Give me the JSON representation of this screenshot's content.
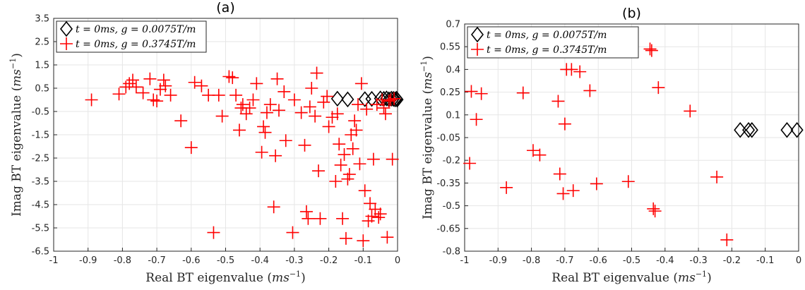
{
  "chart_data": [
    {
      "type": "scatter",
      "title": "(a)",
      "xlabel": "Real BT eigenvalue",
      "xlabel_unit": "ms",
      "xlabel_unit_exp": "−1",
      "ylabel": "Imag BT eigenvalue",
      "ylabel_unit": "ms",
      "ylabel_unit_exp": "−1",
      "xlim": [
        -1,
        0
      ],
      "ylim": [
        -6.5,
        3.5
      ],
      "xticks": [
        -1,
        -0.9,
        -0.8,
        -0.7,
        -0.6,
        -0.5,
        -0.4,
        -0.3,
        -0.2,
        -0.1,
        0
      ],
      "xticklabels": [
        "-1",
        "-0.9",
        "-0.8",
        "-0.7",
        "-0.6",
        "-0.5",
        "-0.4",
        "-0.3",
        "-0.2",
        "-0.1",
        "0"
      ],
      "yticks": [
        3.5,
        2.5,
        1.5,
        0.5,
        -0.5,
        -1.5,
        -2.5,
        -3.5,
        -4.5,
        -5.5,
        -6.5
      ],
      "yticklabels": [
        "3.5",
        "2.5",
        "1.5",
        "0.5",
        "-0.5",
        "-1.5",
        "-2.5",
        "-3.5",
        "-4.5",
        "-5.5",
        "-6.5"
      ],
      "grid": true,
      "legend_position": "top-left",
      "series": [
        {
          "name": "t = 0ms,  g = 0.0075T/m",
          "marker": "diamond",
          "color": "#000000",
          "points": [
            [
              -0.175,
              0.05
            ],
            [
              -0.145,
              0.02
            ],
            [
              -0.095,
              0.03
            ],
            [
              -0.075,
              0.04
            ],
            [
              -0.05,
              0.06
            ],
            [
              -0.04,
              0.04
            ],
            [
              -0.032,
              0.06
            ],
            [
              -0.025,
              0.02
            ],
            [
              -0.018,
              0.05
            ],
            [
              -0.012,
              0.04
            ],
            [
              -0.007,
              0.02
            ],
            [
              -0.003,
              0.05
            ],
            [
              -0.001,
              0.01
            ]
          ]
        },
        {
          "name": "t = 0ms,  g = 0.3745T/m",
          "marker": "plus",
          "color": "#ff0000",
          "points": [
            [
              -0.89,
              0.0
            ],
            [
              -0.81,
              0.25
            ],
            [
              -0.79,
              0.55
            ],
            [
              -0.78,
              0.7
            ],
            [
              -0.77,
              0.85
            ],
            [
              -0.76,
              0.55
            ],
            [
              -0.74,
              0.3
            ],
            [
              -0.72,
              0.9
            ],
            [
              -0.71,
              0.0
            ],
            [
              -0.7,
              -0.05
            ],
            [
              -0.69,
              0.45
            ],
            [
              -0.68,
              0.85
            ],
            [
              -0.675,
              0.6
            ],
            [
              -0.66,
              0.2
            ],
            [
              -0.63,
              -0.9
            ],
            [
              -0.6,
              -2.05
            ],
            [
              -0.59,
              0.75
            ],
            [
              -0.57,
              0.6
            ],
            [
              -0.55,
              0.2
            ],
            [
              -0.535,
              -5.7
            ],
            [
              -0.52,
              0.2
            ],
            [
              -0.51,
              -0.7
            ],
            [
              -0.49,
              1.0
            ],
            [
              -0.48,
              0.95
            ],
            [
              -0.47,
              0.2
            ],
            [
              -0.46,
              -1.3
            ],
            [
              -0.455,
              -0.35
            ],
            [
              -0.45,
              -0.2
            ],
            [
              -0.44,
              -0.6
            ],
            [
              -0.43,
              -0.35
            ],
            [
              -0.42,
              0.0
            ],
            [
              -0.41,
              0.7
            ],
            [
              -0.395,
              -2.25
            ],
            [
              -0.39,
              -1.15
            ],
            [
              -0.385,
              -1.4
            ],
            [
              -0.38,
              -0.55
            ],
            [
              -0.37,
              -0.2
            ],
            [
              -0.36,
              -4.6
            ],
            [
              -0.355,
              -2.4
            ],
            [
              -0.35,
              0.9
            ],
            [
              -0.345,
              -0.45
            ],
            [
              -0.33,
              0.35
            ],
            [
              -0.325,
              -1.75
            ],
            [
              -0.305,
              -5.7
            ],
            [
              -0.3,
              0.0
            ],
            [
              -0.28,
              -0.55
            ],
            [
              -0.27,
              -1.95
            ],
            [
              -0.265,
              -4.8
            ],
            [
              -0.26,
              -5.1
            ],
            [
              -0.255,
              -0.3
            ],
            [
              -0.25,
              0.5
            ],
            [
              -0.24,
              -0.7
            ],
            [
              -0.235,
              1.15
            ],
            [
              -0.23,
              -3.05
            ],
            [
              -0.225,
              -5.1
            ],
            [
              -0.215,
              -0.1
            ],
            [
              -0.205,
              0.15
            ],
            [
              -0.2,
              -1.15
            ],
            [
              -0.19,
              -0.75
            ],
            [
              -0.18,
              -3.5
            ],
            [
              -0.175,
              -0.6
            ],
            [
              -0.17,
              -1.9
            ],
            [
              -0.165,
              -2.8
            ],
            [
              -0.16,
              -5.1
            ],
            [
              -0.155,
              -2.35
            ],
            [
              -0.15,
              -5.95
            ],
            [
              -0.145,
              -3.4
            ],
            [
              -0.14,
              -3.2
            ],
            [
              -0.135,
              -1.5
            ],
            [
              -0.13,
              -2.1
            ],
            [
              -0.125,
              -0.9
            ],
            [
              -0.12,
              -1.3
            ],
            [
              -0.115,
              -0.2
            ],
            [
              -0.11,
              -2.75
            ],
            [
              -0.105,
              0.7
            ],
            [
              -0.1,
              -6.05
            ],
            [
              -0.095,
              -3.9
            ],
            [
              -0.09,
              -0.4
            ],
            [
              -0.085,
              -5.2
            ],
            [
              -0.08,
              -4.45
            ],
            [
              -0.075,
              -5.0
            ],
            [
              -0.07,
              -2.55
            ],
            [
              -0.065,
              -4.7
            ],
            [
              -0.06,
              -0.2
            ],
            [
              -0.055,
              -5.05
            ],
            [
              -0.05,
              -4.9
            ],
            [
              -0.045,
              0.0
            ],
            [
              -0.04,
              -0.35
            ],
            [
              -0.035,
              -0.6
            ],
            [
              -0.03,
              -5.9
            ],
            [
              -0.025,
              -0.05
            ],
            [
              -0.02,
              0.0
            ],
            [
              -0.015,
              -2.55
            ],
            [
              -0.01,
              0.05
            ]
          ]
        }
      ]
    },
    {
      "type": "scatter",
      "title": "(b)",
      "xlabel": "Real BT eigenvalue",
      "xlabel_unit": "ms",
      "xlabel_unit_exp": "−1",
      "ylabel": "Imag BT eigenvalue",
      "ylabel_unit": "ms",
      "ylabel_unit_exp": "−1",
      "xlim": [
        -1,
        0
      ],
      "ylim": [
        -0.8,
        0.7
      ],
      "xticks": [
        -1,
        -0.9,
        -0.8,
        -0.7,
        -0.6,
        -0.5,
        -0.4,
        -0.3,
        -0.2,
        -0.1,
        0
      ],
      "xticklabels": [
        "-1",
        "-0.9",
        "-0.8",
        "-0.7",
        "-0.6",
        "-0.5",
        "-0.4",
        "-0.3",
        "-0.2",
        "-0.1",
        "0"
      ],
      "yticks": [
        0.7,
        0.55,
        0.4,
        0.25,
        0.1,
        -0.05,
        -0.2,
        -0.35,
        -0.5,
        -0.65,
        -0.8
      ],
      "yticklabels": [
        "0.7",
        "0.55",
        "0.4",
        "0.25",
        "0.1",
        "-0.05",
        "-0.2",
        "-0.35",
        "-0.5",
        "-0.65",
        "-0.8"
      ],
      "grid": true,
      "legend_position": "top-left",
      "series": [
        {
          "name": "t = 0ms,  g = 0.0075T/m",
          "marker": "diamond",
          "color": "#000000",
          "points": [
            [
              -0.175,
              0.0
            ],
            [
              -0.15,
              0.0
            ],
            [
              -0.14,
              0.0
            ],
            [
              -0.035,
              0.0
            ],
            [
              -0.005,
              0.0
            ]
          ]
        },
        {
          "name": "t = 0ms,  g = 0.3745T/m",
          "marker": "plus",
          "color": "#ff0000",
          "points": [
            [
              -0.985,
              -0.22
            ],
            [
              -0.98,
              0.255
            ],
            [
              -0.965,
              0.07
            ],
            [
              -0.95,
              0.24
            ],
            [
              -0.875,
              -0.38
            ],
            [
              -0.825,
              0.245
            ],
            [
              -0.795,
              -0.135
            ],
            [
              -0.775,
              -0.165
            ],
            [
              -0.72,
              0.19
            ],
            [
              -0.715,
              -0.29
            ],
            [
              -0.705,
              -0.42
            ],
            [
              -0.7,
              0.04
            ],
            [
              -0.695,
              0.4
            ],
            [
              -0.68,
              0.4
            ],
            [
              -0.675,
              -0.4
            ],
            [
              -0.655,
              0.385
            ],
            [
              -0.625,
              0.26
            ],
            [
              -0.605,
              -0.355
            ],
            [
              -0.51,
              -0.34
            ],
            [
              -0.445,
              0.535
            ],
            [
              -0.44,
              0.525
            ],
            [
              -0.435,
              -0.52
            ],
            [
              -0.43,
              -0.535
            ],
            [
              -0.42,
              0.28
            ],
            [
              -0.325,
              0.125
            ],
            [
              -0.245,
              -0.31
            ],
            [
              -0.215,
              -0.725
            ]
          ]
        }
      ]
    }
  ]
}
